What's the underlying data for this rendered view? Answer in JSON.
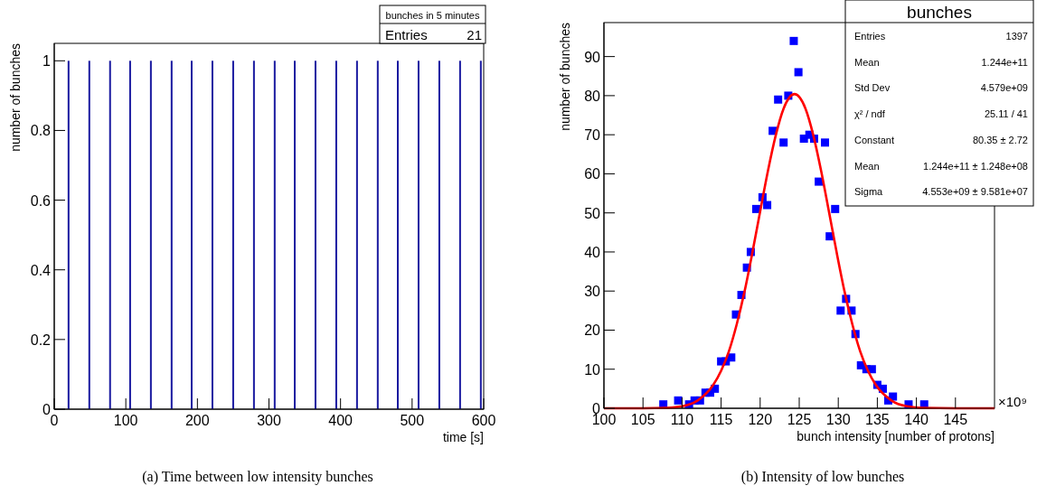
{
  "chart_data": [
    {
      "type": "bar",
      "xlabel": "time [s]",
      "ylabel": "number of bunches",
      "color": "#1a1aa0",
      "x": [
        20,
        49,
        78,
        106,
        135,
        164,
        192,
        221,
        250,
        279,
        308,
        336,
        365,
        394,
        423,
        452,
        480,
        509,
        538,
        567,
        596
      ],
      "values": [
        1,
        1,
        1,
        1,
        1,
        1,
        1,
        1,
        1,
        1,
        1,
        1,
        1,
        1,
        1,
        1,
        1,
        1,
        1,
        1,
        1
      ],
      "xlim": [
        0,
        600
      ],
      "xticks": [
        0,
        100,
        200,
        300,
        400,
        500,
        600
      ],
      "ylim": [
        0,
        1.05
      ],
      "yticks": [
        0,
        0.2,
        0.4,
        0.6,
        0.8,
        1
      ],
      "annotations": [
        "bunches in 5 minutes",
        "Entries",
        "21",
        "(a) Time between low intensity bunches"
      ]
    },
    {
      "type": "scatter",
      "xlabel": "bunch intensity [number of protons]",
      "ylabel": "number of bunches",
      "xlim": [
        100,
        150
      ],
      "xticks": [
        100,
        105,
        110,
        115,
        120,
        125,
        130,
        135,
        140,
        145
      ],
      "ylim": [
        0,
        98.7
      ],
      "yticks": [
        0,
        10,
        20,
        30,
        40,
        50,
        60,
        70,
        80,
        90
      ],
      "series": [
        {
          "marker": "square",
          "color": "#0000ff",
          "x": [
            107.6,
            109.5,
            110.9,
            111.6,
            112.3,
            113,
            113.6,
            114.2,
            115,
            115.6,
            116.3,
            116.9,
            117.6,
            118.3,
            118.8,
            119.5,
            120.3,
            120.9,
            121.6,
            122.3,
            123,
            123.6,
            124.3,
            124.9,
            125.6,
            126.3,
            126.9,
            127.5,
            128.3,
            128.9,
            129.6,
            130.3,
            131,
            131.7,
            132.2,
            132.9,
            133.6,
            134.3,
            135,
            135.7,
            136.4,
            137,
            139,
            141
          ],
          "values": [
            1,
            2,
            1,
            2,
            2,
            4,
            4,
            5,
            12,
            12,
            13,
            24,
            29,
            36,
            40,
            51,
            54,
            52,
            71,
            79,
            68,
            80,
            94,
            86,
            69,
            70,
            69,
            58,
            68,
            44,
            51,
            25,
            28,
            25,
            19,
            11,
            10,
            10,
            6,
            5,
            2,
            3,
            1,
            1
          ]
        },
        {
          "type": "line",
          "color": "#ff0000",
          "x": [
            100,
            105,
            108,
            110,
            112,
            114,
            115,
            116,
            117,
            118,
            119,
            120,
            121,
            122,
            123,
            124.4,
            125.8,
            126.8,
            127.8,
            128.8,
            129.8,
            130.8,
            131.8,
            132.8,
            133.8,
            134.8,
            136.8,
            138.8,
            140.8,
            145,
            150
          ],
          "values": [
            0,
            0,
            0.1,
            0.5,
            2,
            6,
            9.6,
            14.6,
            21.5,
            29.9,
            39.8,
            50.4,
            60.8,
            69.9,
            76.7,
            80.4,
            76.7,
            69.9,
            60.8,
            50.4,
            39.8,
            29.9,
            21.5,
            14.6,
            9.6,
            6,
            2,
            0.5,
            0.1,
            0,
            0
          ]
        }
      ],
      "annotations": [
        "bunches",
        "Entries",
        "1397",
        "Mean",
        "1.244e+11",
        "Std Dev",
        "4.579e+09",
        "χ² / ndf",
        "25.11 / 41",
        "Constant",
        "80.35 ± 2.72",
        "Mean",
        "1.244e+11 ± 1.248e+08",
        "Sigma",
        "4.553e+09 ± 9.581e+07",
        "×10⁹",
        "(b) Intensity of low bunches"
      ]
    }
  ]
}
